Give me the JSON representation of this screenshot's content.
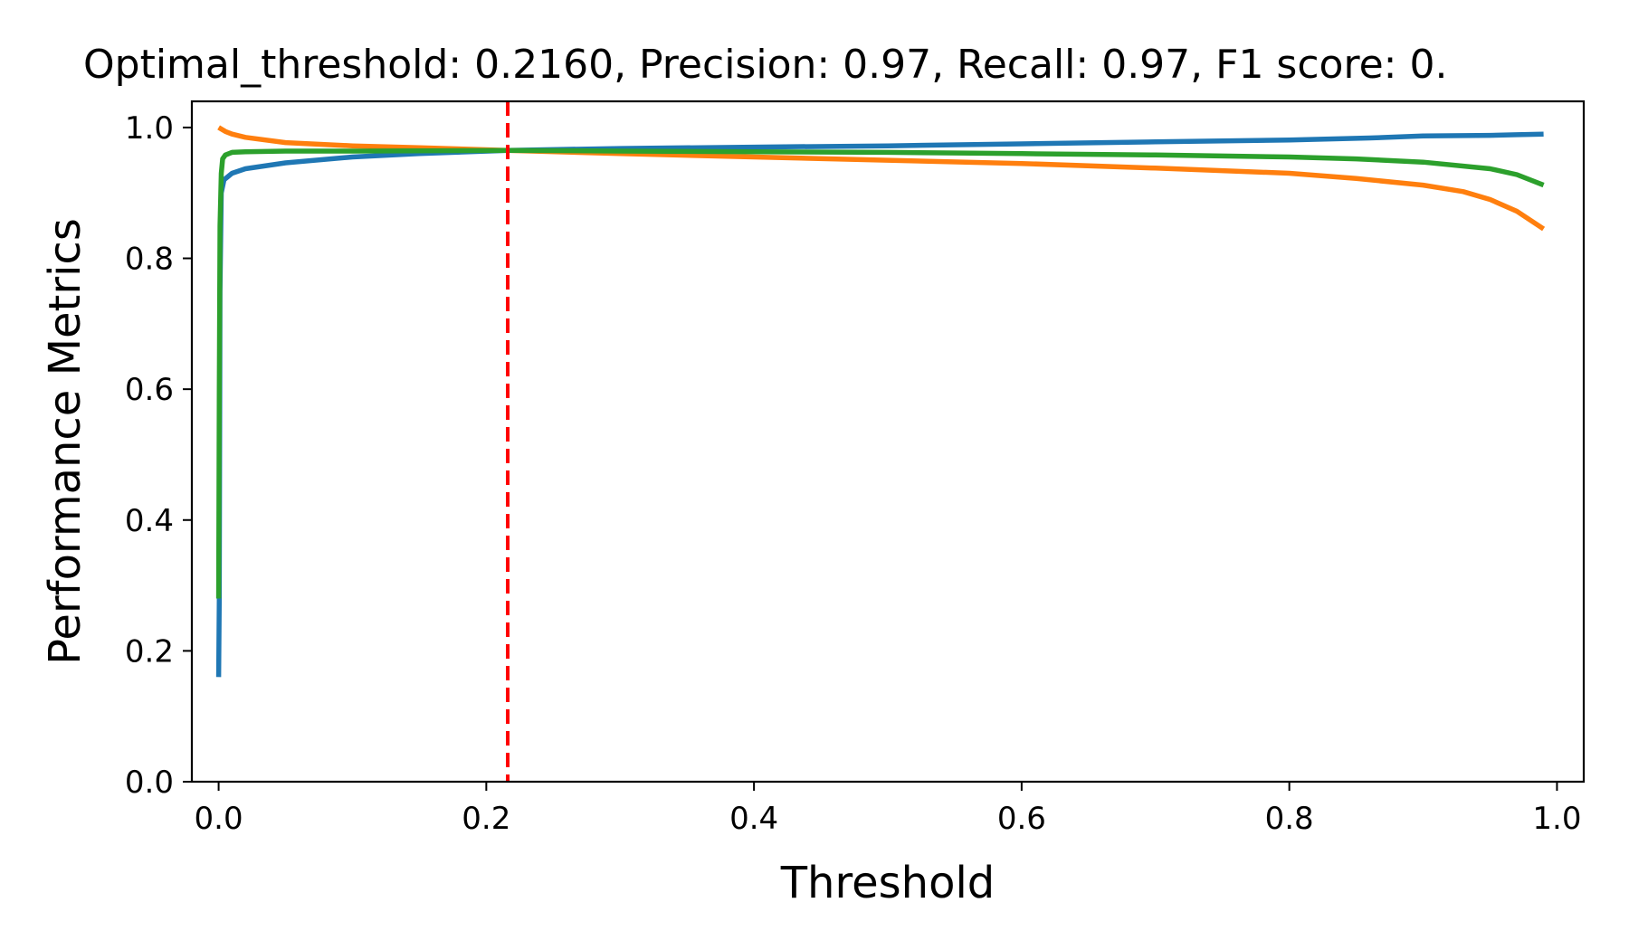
{
  "chart_data": {
    "type": "line",
    "title": "Optimal_threshold: 0.2160, Precision: 0.97, Recall: 0.97, F1 score: 0.",
    "xlabel": "Threshold",
    "ylabel": "Performance Metrics",
    "xlim": [
      -0.02,
      1.02
    ],
    "ylim": [
      0.0,
      1.04
    ],
    "xticks": [
      "0.0",
      "0.2",
      "0.4",
      "0.6",
      "0.8",
      "1.0"
    ],
    "yticks": [
      "0.0",
      "0.2",
      "0.4",
      "0.6",
      "0.8",
      "1.0"
    ],
    "grid": false,
    "legend": "none",
    "threshold_line": {
      "x": 0.216,
      "color": "#ff0000",
      "style": "dashed"
    },
    "series": [
      {
        "color": "#1f77b4",
        "x": [
          0.0,
          0.0005,
          0.001,
          0.002,
          0.004,
          0.01,
          0.02,
          0.05,
          0.1,
          0.15,
          0.216,
          0.3,
          0.4,
          0.5,
          0.6,
          0.7,
          0.8,
          0.86,
          0.9,
          0.95,
          0.97,
          0.99
        ],
        "y": [
          0.16,
          0.28,
          0.75,
          0.9,
          0.92,
          0.93,
          0.937,
          0.946,
          0.955,
          0.96,
          0.965,
          0.968,
          0.97,
          0.972,
          0.975,
          0.978,
          0.981,
          0.984,
          0.987,
          0.988,
          0.989,
          0.99
        ]
      },
      {
        "color": "#ff7f0e",
        "x": [
          0.0,
          0.005,
          0.01,
          0.02,
          0.05,
          0.1,
          0.15,
          0.216,
          0.3,
          0.4,
          0.5,
          0.6,
          0.7,
          0.8,
          0.85,
          0.9,
          0.93,
          0.95,
          0.97,
          0.99
        ],
        "y": [
          1.0,
          0.994,
          0.99,
          0.985,
          0.977,
          0.972,
          0.969,
          0.965,
          0.96,
          0.955,
          0.95,
          0.945,
          0.938,
          0.93,
          0.922,
          0.912,
          0.902,
          0.89,
          0.872,
          0.845
        ]
      },
      {
        "color": "#2ca02c",
        "x": [
          0.0,
          0.0005,
          0.001,
          0.002,
          0.003,
          0.005,
          0.01,
          0.02,
          0.05,
          0.1,
          0.216,
          0.3,
          0.4,
          0.5,
          0.6,
          0.7,
          0.8,
          0.85,
          0.9,
          0.95,
          0.97,
          0.99
        ],
        "y": [
          0.28,
          0.6,
          0.85,
          0.93,
          0.952,
          0.958,
          0.962,
          0.963,
          0.964,
          0.964,
          0.965,
          0.964,
          0.963,
          0.962,
          0.96,
          0.958,
          0.955,
          0.952,
          0.947,
          0.937,
          0.928,
          0.912
        ]
      }
    ]
  }
}
